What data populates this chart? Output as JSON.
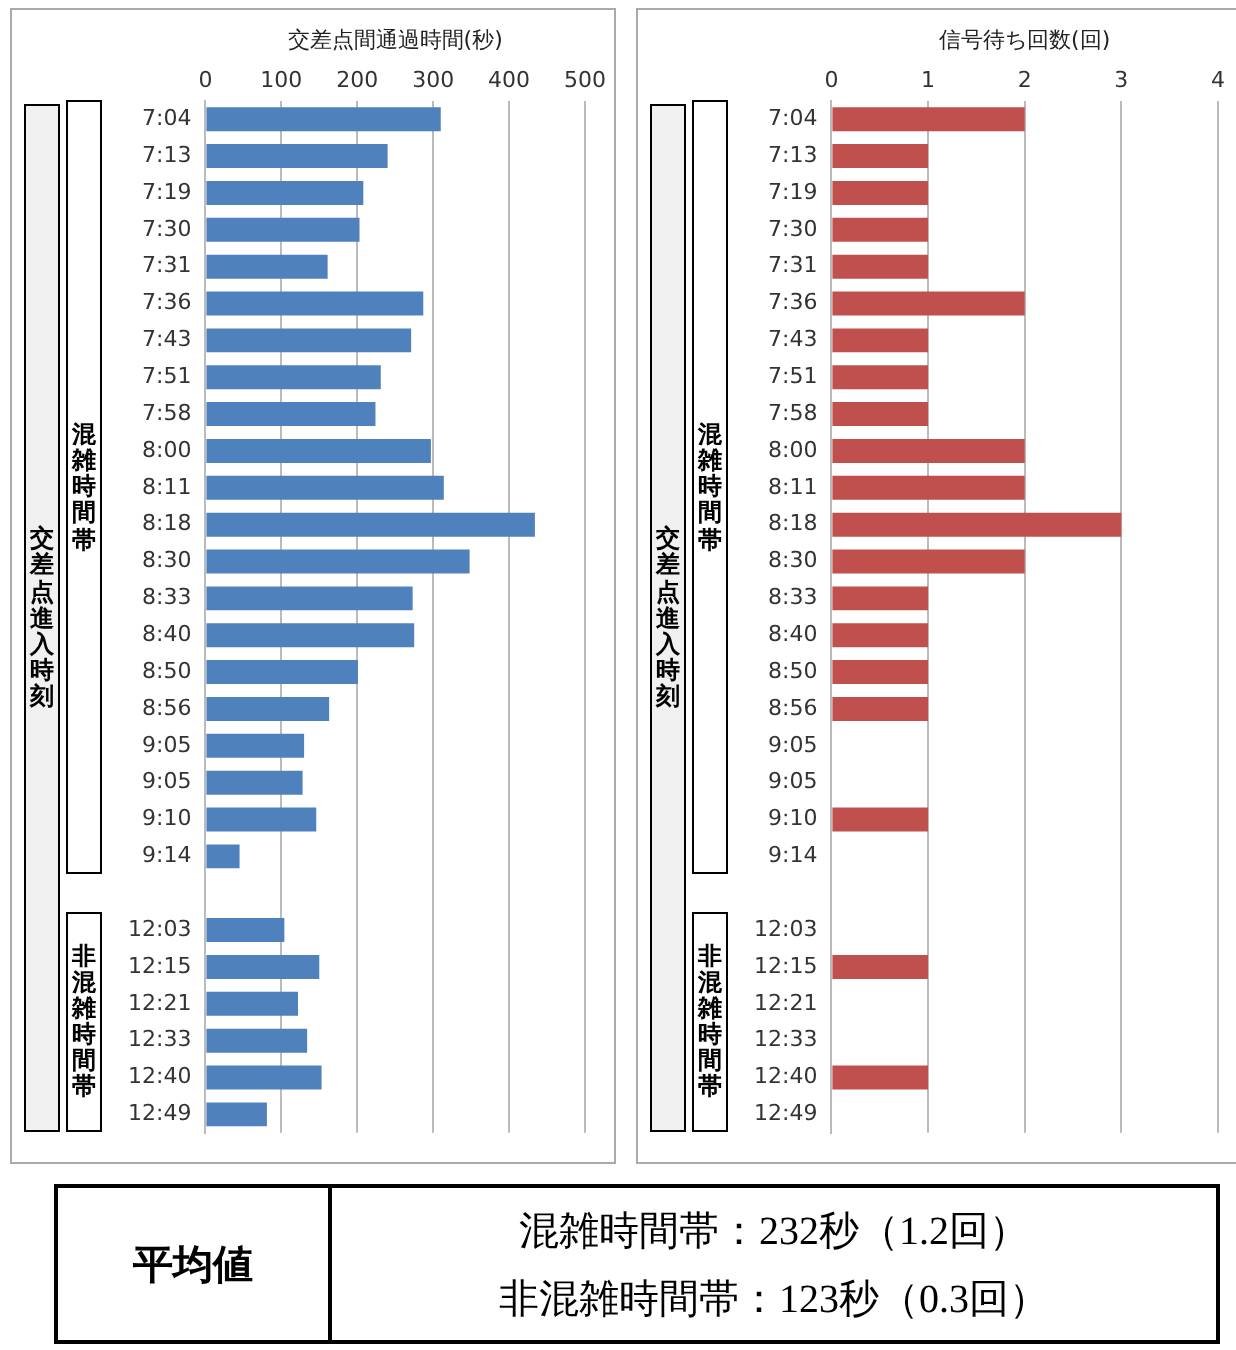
{
  "chart_data": [
    {
      "type": "bar",
      "orientation": "horizontal",
      "xlabel": "交差点間通過時間(秒)",
      "ylabel": "交差点進入時刻",
      "categories": [
        "7:04",
        "7:13",
        "7:19",
        "7:30",
        "7:31",
        "7:36",
        "7:43",
        "7:51",
        "7:58",
        "8:00",
        "8:11",
        "8:18",
        "8:30",
        "8:33",
        "8:40",
        "8:50",
        "8:56",
        "9:05",
        "9:05",
        "9:10",
        "9:14",
        null,
        "12:03",
        "12:15",
        "12:21",
        "12:33",
        "12:40",
        "12:49"
      ],
      "values": [
        310,
        240,
        208,
        203,
        161,
        287,
        271,
        231,
        224,
        297,
        314,
        434,
        348,
        273,
        275,
        201,
        163,
        130,
        128,
        146,
        45,
        null,
        104,
        150,
        122,
        134,
        153,
        81
      ],
      "color": "#4f81bd",
      "xlim": [
        0,
        500
      ],
      "xticks": [
        0,
        100,
        200,
        300,
        400,
        500
      ],
      "grid": "x",
      "annotations": [
        "混雑時間帯",
        "非混雑時間帯"
      ]
    },
    {
      "type": "bar",
      "orientation": "horizontal",
      "xlabel": "信号待ち回数(回)",
      "ylabel": "交差点進入時刻",
      "categories": [
        "7:04",
        "7:13",
        "7:19",
        "7:30",
        "7:31",
        "7:36",
        "7:43",
        "7:51",
        "7:58",
        "8:00",
        "8:11",
        "8:18",
        "8:30",
        "8:33",
        "8:40",
        "8:50",
        "8:56",
        "9:05",
        "9:05",
        "9:10",
        "9:14",
        null,
        "12:03",
        "12:15",
        "12:21",
        "12:33",
        "12:40",
        "12:49"
      ],
      "values": [
        2,
        1,
        1,
        1,
        1,
        2,
        1,
        1,
        1,
        2,
        2,
        3,
        2,
        1,
        1,
        1,
        1,
        0,
        0,
        1,
        0,
        null,
        0,
        1,
        0,
        0,
        1,
        0
      ],
      "color": "#c0504d",
      "xlim": [
        0,
        4
      ],
      "xticks": [
        0,
        1,
        2,
        3,
        4
      ],
      "grid": "x",
      "annotations": [
        "混雑時間帯",
        "非混雑時間帯"
      ]
    },
    {
      "type": "other",
      "title": "平均値",
      "annotations": [
        "混雑時間帯：232秒（1.2回）",
        "非混雑時間帯：123秒（0.3回）"
      ]
    }
  ]
}
